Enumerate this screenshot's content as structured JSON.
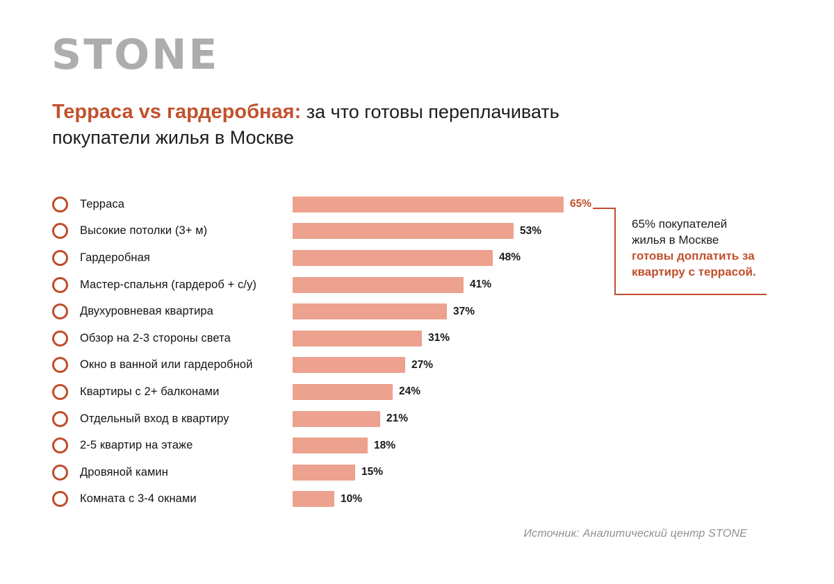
{
  "logo": "STONE",
  "title": {
    "highlight": "Терраса vs гардеробная:",
    "tail": " за что готовы переплачивать",
    "line2": "покупатели жилья в Москве"
  },
  "chart_data": {
    "type": "bar",
    "orientation": "horizontal",
    "title": "Терраса vs гардеробная: за что готовы переплачивать покупатели жилья в Москве",
    "categories": [
      "Терраса",
      "Высокие потолки (3+ м)",
      "Гардеробная",
      "Мастер-спальня (гардероб + с/у)",
      "Двухуровневая квартира",
      "Обзор на 2-3 стороны света",
      "Окно в ванной или гардеробной",
      "Квартиры с 2+ балконами",
      "Отдельный вход в квартиру",
      "2-5 квартир на этаже",
      "Дровяной камин",
      "Комната с 3-4 окнами"
    ],
    "values": [
      65,
      53,
      48,
      41,
      37,
      31,
      27,
      24,
      21,
      18,
      15,
      10
    ],
    "value_suffix": "%",
    "xlim": [
      0,
      65
    ],
    "grid": false,
    "legend": false,
    "bar_color": "#eca28e",
    "accent_color": "#c14e2b",
    "highlight_index": 0
  },
  "callout": {
    "line1": "65% покупателей",
    "line2": "жилья в Москве",
    "bold1": "готовы доплатить за",
    "bold2": "квартиру с террасой."
  },
  "source": "Источник: Аналитический центр STONE",
  "colors": {
    "accent": "#c14e2b",
    "bar": "#eca28e",
    "logo_gray": "#adadad",
    "text": "#1a1a1a",
    "source_gray": "#8f8f8f"
  }
}
